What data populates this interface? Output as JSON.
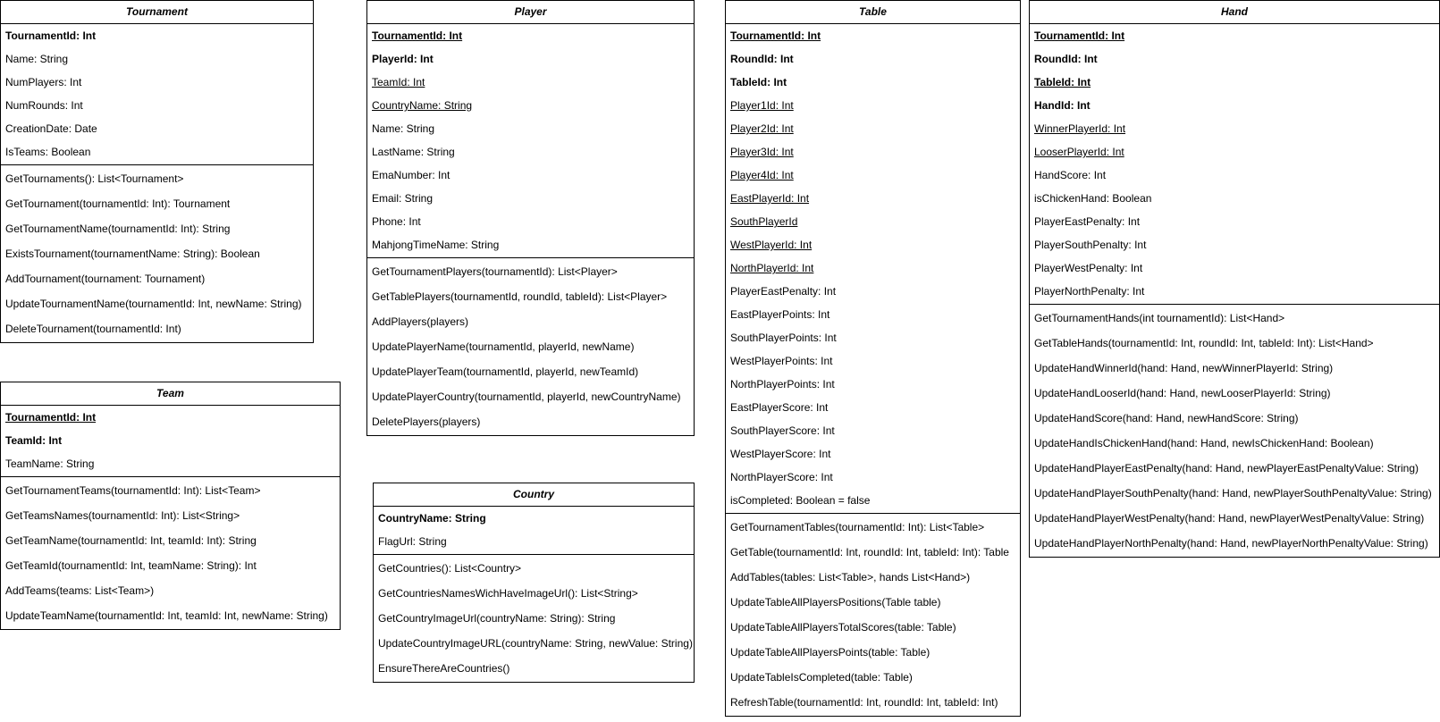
{
  "classes": [
    {
      "name": "Tournament",
      "attributes": [
        {
          "text": "TournamentId: Int",
          "bold": true,
          "underline": false
        },
        {
          "text": "Name: String",
          "bold": false,
          "underline": false
        },
        {
          "text": "NumPlayers: Int",
          "bold": false,
          "underline": false
        },
        {
          "text": "NumRounds: Int",
          "bold": false,
          "underline": false
        },
        {
          "text": "CreationDate: Date",
          "bold": false,
          "underline": false
        },
        {
          "text": "IsTeams: Boolean",
          "bold": false,
          "underline": false
        }
      ],
      "methods": [
        "GetTournaments(): List<Tournament>",
        "GetTournament(tournamentId: Int): Tournament",
        "GetTournamentName(tournamentId: Int): String",
        "ExistsTournament(tournamentName: String): Boolean",
        "AddTournament(tournament: Tournament)",
        "UpdateTournamentName(tournamentId: Int, newName: String)",
        "DeleteTournament(tournamentId: Int)"
      ]
    },
    {
      "name": "Team",
      "attributes": [
        {
          "text": "TournamentId: Int",
          "bold": true,
          "underline": true
        },
        {
          "text": "TeamId: Int",
          "bold": true,
          "underline": false
        },
        {
          "text": "TeamName: String",
          "bold": false,
          "underline": false
        }
      ],
      "methods": [
        "GetTournamentTeams(tournamentId: Int): List<Team>",
        "GetTeamsNames(tournamentId: Int): List<String>",
        "GetTeamName(tournamentId: Int, teamId: Int): String",
        "GetTeamId(tournamentId: Int, teamName: String): Int",
        "AddTeams(teams: List<Team>)",
        "UpdateTeamName(tournamentId: Int, teamId: Int, newName: String)"
      ]
    },
    {
      "name": "Player",
      "attributes": [
        {
          "text": "TournamentId: Int",
          "bold": true,
          "underline": true
        },
        {
          "text": "PlayerId: Int",
          "bold": true,
          "underline": false
        },
        {
          "text": "TeamId: Int",
          "bold": false,
          "underline": true
        },
        {
          "text": "CountryName: String",
          "bold": false,
          "underline": true
        },
        {
          "text": "Name: String",
          "bold": false,
          "underline": false
        },
        {
          "text": "LastName: String",
          "bold": false,
          "underline": false
        },
        {
          "text": "EmaNumber: Int",
          "bold": false,
          "underline": false
        },
        {
          "text": "Email: String",
          "bold": false,
          "underline": false
        },
        {
          "text": "Phone: Int",
          "bold": false,
          "underline": false
        },
        {
          "text": "MahjongTimeName: String",
          "bold": false,
          "underline": false
        }
      ],
      "methods": [
        "GetTournamentPlayers(tournamentId): List<Player>",
        "GetTablePlayers(tournamentId, roundId, tableId): List<Player>",
        "AddPlayers(players)",
        "UpdatePlayerName(tournamentId, playerId, newName)",
        "UpdatePlayerTeam(tournamentId, playerId, newTeamId)",
        "UpdatePlayerCountry(tournamentId, playerId, newCountryName)",
        "DeletePlayers(players)"
      ]
    },
    {
      "name": "Country",
      "attributes": [
        {
          "text": "CountryName: String",
          "bold": true,
          "underline": false
        },
        {
          "text": "FlagUrl: String",
          "bold": false,
          "underline": false
        }
      ],
      "methods": [
        "GetCountries(): List<Country>",
        "GetCountriesNamesWichHaveImageUrl(): List<String>",
        "GetCountryImageUrl(countryName: String): String",
        "UpdateCountryImageURL(countryName: String, newValue: String)",
        "EnsureThereAreCountries()"
      ]
    },
    {
      "name": "Table",
      "attributes": [
        {
          "text": "TournamentId: Int",
          "bold": true,
          "underline": true
        },
        {
          "text": "RoundId: Int",
          "bold": true,
          "underline": false
        },
        {
          "text": "TableId: Int",
          "bold": true,
          "underline": false
        },
        {
          "text": "Player1Id: Int",
          "bold": false,
          "underline": true
        },
        {
          "text": "Player2Id: Int",
          "bold": false,
          "underline": true
        },
        {
          "text": "Player3Id: Int",
          "bold": false,
          "underline": true
        },
        {
          "text": "Player4Id: Int",
          "bold": false,
          "underline": true
        },
        {
          "text": "EastPlayerId: Int",
          "bold": false,
          "underline": true
        },
        {
          "text": "SouthPlayerId",
          "bold": false,
          "underline": true
        },
        {
          "text": "WestPlayerId: Int",
          "bold": false,
          "underline": true
        },
        {
          "text": "NorthPlayerId: Int",
          "bold": false,
          "underline": true
        },
        {
          "text": "PlayerEastPenalty: Int",
          "bold": false,
          "underline": false
        },
        {
          "text": "EastPlayerPoints: Int",
          "bold": false,
          "underline": false
        },
        {
          "text": "SouthPlayerPoints: Int",
          "bold": false,
          "underline": false
        },
        {
          "text": "WestPlayerPoints: Int",
          "bold": false,
          "underline": false
        },
        {
          "text": "NorthPlayerPoints: Int",
          "bold": false,
          "underline": false
        },
        {
          "text": "EastPlayerScore: Int",
          "bold": false,
          "underline": false
        },
        {
          "text": "SouthPlayerScore: Int",
          "bold": false,
          "underline": false
        },
        {
          "text": "WestPlayerScore: Int",
          "bold": false,
          "underline": false
        },
        {
          "text": "NorthPlayerScore: Int",
          "bold": false,
          "underline": false
        },
        {
          "text": "isCompleted: Boolean = false",
          "bold": false,
          "underline": false
        }
      ],
      "methods": [
        "GetTournamentTables(tournamentId: Int): List<Table>",
        "GetTable(tournamentId: Int, roundId: Int, tableId: Int): Table",
        "AddTables(tables: List<Table>, hands List<Hand>)",
        "UpdateTableAllPlayersPositions(Table table)",
        "UpdateTableAllPlayersTotalScores(table: Table)",
        "UpdateTableAllPlayersPoints(table: Table)",
        "UpdateTableIsCompleted(table: Table)",
        "RefreshTable(tournamentId: Int, roundId: Int, tableId: Int)"
      ]
    },
    {
      "name": "Hand",
      "attributes": [
        {
          "text": "TournamentId: Int",
          "bold": true,
          "underline": true
        },
        {
          "text": "RoundId: Int",
          "bold": true,
          "underline": false
        },
        {
          "text": "TableId: Int",
          "bold": true,
          "underline": true
        },
        {
          "text": "HandId: Int",
          "bold": true,
          "underline": false
        },
        {
          "text": "WinnerPlayerId: Int",
          "bold": false,
          "underline": true
        },
        {
          "text": "LooserPlayerId: Int",
          "bold": false,
          "underline": true
        },
        {
          "text": "HandScore: Int",
          "bold": false,
          "underline": false
        },
        {
          "text": "isChickenHand: Boolean",
          "bold": false,
          "underline": false
        },
        {
          "text": "PlayerEastPenalty: Int",
          "bold": false,
          "underline": false
        },
        {
          "text": "PlayerSouthPenalty: Int",
          "bold": false,
          "underline": false
        },
        {
          "text": "PlayerWestPenalty: Int",
          "bold": false,
          "underline": false
        },
        {
          "text": "PlayerNorthPenalty: Int",
          "bold": false,
          "underline": false
        }
      ],
      "methods": [
        "GetTournamentHands(int tournamentId): List<Hand>",
        "GetTableHands(tournamentId: Int, roundId: Int, tableId: Int): List<Hand>",
        "UpdateHandWinnerId(hand: Hand, newWinnerPlayerId: String)",
        "UpdateHandLooserId(hand: Hand, newLooserPlayerId: String)",
        "UpdateHandScore(hand: Hand, newHandScore: String)",
        "UpdateHandIsChickenHand(hand: Hand, newIsChickenHand: Boolean)",
        "UpdateHandPlayerEastPenalty(hand: Hand, newPlayerEastPenaltyValue: String)",
        "UpdateHandPlayerSouthPenalty(hand: Hand, newPlayerSouthPenaltyValue: String)",
        "UpdateHandPlayerWestPenalty(hand: Hand, newPlayerWestPenaltyValue: String)",
        "UpdateHandPlayerNorthPenalty(hand: Hand, newPlayerNorthPenaltyValue: String)"
      ]
    }
  ]
}
